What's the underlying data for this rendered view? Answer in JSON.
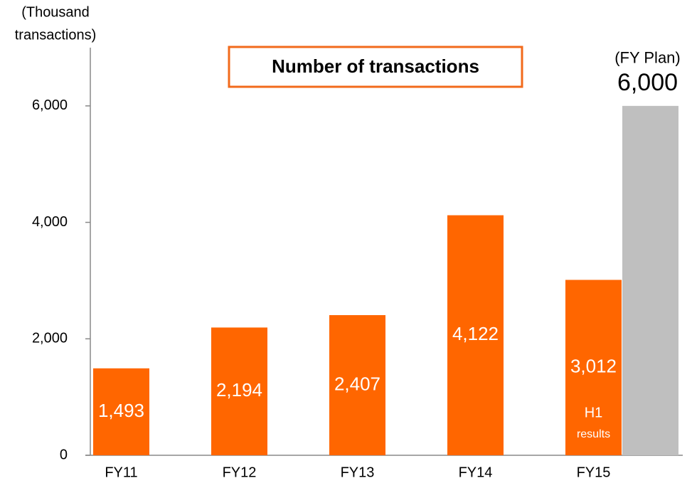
{
  "chart_data": {
    "type": "bar",
    "title": "Number of transactions",
    "y_label": [
      "(Thousand",
      "transactions)"
    ],
    "categories": [
      "FY11",
      "FY12",
      "FY13",
      "FY14",
      "FY15"
    ],
    "values": [
      1493,
      2194,
      2407,
      4122,
      3012
    ],
    "value_labels": [
      "1,493",
      "2,194",
      "2,407",
      "4,122",
      "3,012"
    ],
    "color": "#ff6600",
    "plan": {
      "label": "(FY Plan)",
      "value": 6000,
      "value_label": "6,000",
      "color": "#bfbfbf"
    },
    "h1_note": [
      "H1",
      "results"
    ],
    "ylim": [
      0,
      7000
    ],
    "yticks": [
      0,
      {
        "value": 2000,
        "label": "2,000"
      },
      {
        "value": 4000,
        "label": "4,000"
      },
      {
        "value": 6000,
        "label": "6,000"
      }
    ]
  }
}
